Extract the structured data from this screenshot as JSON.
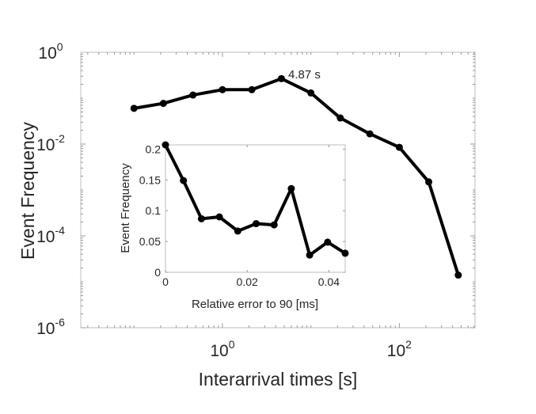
{
  "chart_data": [
    {
      "type": "line",
      "scale": {
        "x": "log",
        "y": "log"
      },
      "xlabel": "Interarrival times [s]",
      "ylabel": "Event Frequency",
      "xlim": [
        0.025,
        718
      ],
      "ylim": [
        1e-06,
        1
      ],
      "xticks": [
        {
          "value": 1,
          "base": "10",
          "exp": "0"
        },
        {
          "value": 100,
          "base": "10",
          "exp": "2"
        }
      ],
      "yticks": [
        {
          "value": 1,
          "base": "10",
          "exp": "0"
        },
        {
          "value": 0.01,
          "base": "10",
          "exp": "-2"
        },
        {
          "value": 0.0001,
          "base": "10",
          "exp": "-4"
        },
        {
          "value": 1e-06,
          "base": "10",
          "exp": "-6"
        }
      ],
      "grid": false,
      "x": [
        0.1,
        0.215,
        0.464,
        1,
        2.15,
        4.64,
        10,
        21.5,
        46.4,
        100,
        215,
        464
      ],
      "y": [
        0.06,
        0.077,
        0.117,
        0.153,
        0.153,
        0.266,
        0.13,
        0.037,
        0.0167,
        0.0085,
        0.0015,
        1.4e-05
      ],
      "annotation": {
        "text": "4.87 s",
        "point_index": 5
      },
      "color": "#000000"
    },
    {
      "type": "line",
      "placement": "inset",
      "xlabel": "Relative error to 90 [ms]",
      "ylabel": "Event Frequency",
      "xlim": [
        0,
        0.044
      ],
      "ylim": [
        0,
        0.207
      ],
      "xticks": [
        {
          "value": 0,
          "label": "0"
        },
        {
          "value": 0.02,
          "label": "0.02"
        },
        {
          "value": 0.04,
          "label": "0.04"
        }
      ],
      "yticks": [
        {
          "value": 0,
          "label": "0"
        },
        {
          "value": 0.05,
          "label": "0.05"
        },
        {
          "value": 0.1,
          "label": "0.1"
        },
        {
          "value": 0.15,
          "label": "0.15"
        },
        {
          "value": 0.2,
          "label": "0.2"
        }
      ],
      "grid": false,
      "x": [
        0,
        0.0044,
        0.0088,
        0.0132,
        0.0177,
        0.0222,
        0.0266,
        0.0308,
        0.0353,
        0.0397,
        0.044
      ],
      "y": [
        0.207,
        0.149,
        0.087,
        0.09,
        0.067,
        0.079,
        0.077,
        0.136,
        0.028,
        0.049,
        0.031
      ],
      "color": "#000000"
    }
  ]
}
